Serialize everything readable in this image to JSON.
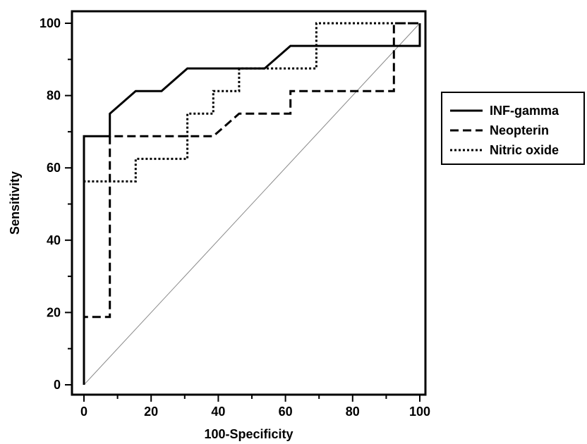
{
  "chart_data": {
    "type": "line",
    "xlabel": "100-Specificity",
    "ylabel": "Sensitivity",
    "xlim": [
      0,
      100
    ],
    "ylim": [
      0,
      100
    ],
    "xticks": [
      0,
      20,
      40,
      60,
      80,
      100
    ],
    "yticks": [
      0,
      20,
      40,
      60,
      80,
      100
    ],
    "legend_position": "right",
    "grid": false,
    "series": [
      {
        "name": "INF-gamma",
        "style": "solid",
        "x": [
          0,
          0,
          7.7,
          7.7,
          15.4,
          23.1,
          30.8,
          53.8,
          61.5,
          100,
          100
        ],
        "y": [
          0,
          68.75,
          68.75,
          75,
          81.25,
          81.25,
          87.5,
          87.5,
          93.75,
          93.75,
          100
        ]
      },
      {
        "name": "Neopterin",
        "style": "dashed",
        "x": [
          0,
          0,
          7.7,
          7.7,
          38.5,
          46.2,
          61.5,
          61.5,
          92.3,
          92.3,
          100
        ],
        "y": [
          0,
          18.75,
          18.75,
          68.75,
          68.75,
          75,
          75,
          81.25,
          81.25,
          100,
          100
        ]
      },
      {
        "name": "Nitric oxide",
        "style": "dotted",
        "x": [
          0,
          0,
          15.4,
          15.4,
          30.8,
          30.8,
          38.5,
          38.5,
          46.2,
          46.2,
          69.2,
          69.2,
          100
        ],
        "y": [
          0,
          56.25,
          56.25,
          62.5,
          62.5,
          75,
          75,
          81.25,
          81.25,
          87.5,
          87.5,
          100,
          100
        ]
      }
    ],
    "reference_line": {
      "x": [
        0,
        100
      ],
      "y": [
        0,
        100
      ]
    }
  }
}
